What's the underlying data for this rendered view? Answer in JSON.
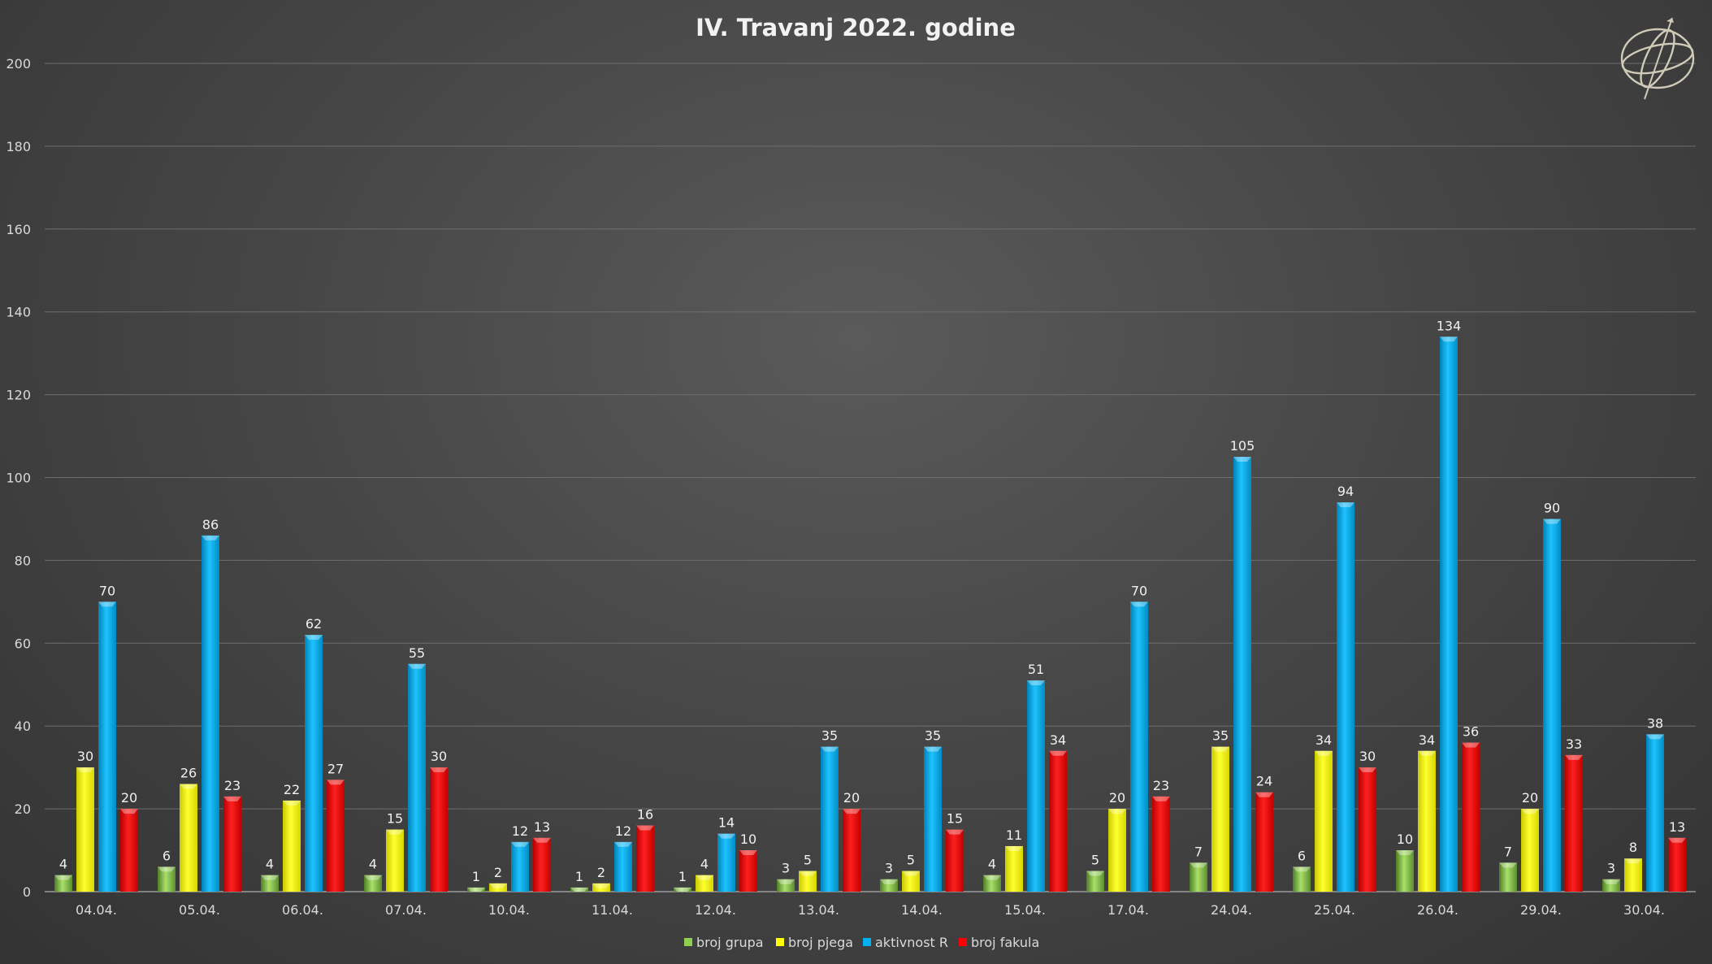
{
  "chart_data": {
    "type": "bar",
    "title": "IV. Travanj 2022. godine",
    "xlabel": "",
    "ylabel": "",
    "ylim": [
      0,
      200
    ],
    "yticks": [
      0,
      20,
      40,
      60,
      80,
      100,
      120,
      140,
      160,
      180,
      200
    ],
    "grid": true,
    "legend": "bottom",
    "categories": [
      "04.04.",
      "05.04.",
      "06.04.",
      "07.04.",
      "10.04.",
      "11.04.",
      "12.04.",
      "13.04.",
      "14.04.",
      "15.04.",
      "17.04.",
      "24.04.",
      "25.04.",
      "26.04.",
      "29.04.",
      "30.04."
    ],
    "series": [
      {
        "name": "broj grupa",
        "color": "#8fd14f",
        "values": [
          4,
          6,
          4,
          4,
          1,
          1,
          1,
          3,
          3,
          4,
          5,
          7,
          6,
          10,
          7,
          3
        ]
      },
      {
        "name": "broj pjega",
        "color": "#ffff00",
        "values": [
          30,
          26,
          22,
          15,
          2,
          2,
          4,
          5,
          5,
          11,
          20,
          35,
          34,
          34,
          20,
          8
        ]
      },
      {
        "name": "aktivnost R",
        "color": "#00b0f0",
        "values": [
          70,
          86,
          62,
          55,
          12,
          12,
          14,
          35,
          35,
          51,
          70,
          105,
          94,
          134,
          90,
          38
        ]
      },
      {
        "name": "broj fakula",
        "color": "#ff0000",
        "values": [
          20,
          23,
          27,
          30,
          13,
          16,
          10,
          20,
          15,
          34,
          23,
          24,
          30,
          36,
          33,
          13
        ]
      }
    ]
  },
  "logo": {
    "icon": "armillary-sphere-icon"
  }
}
